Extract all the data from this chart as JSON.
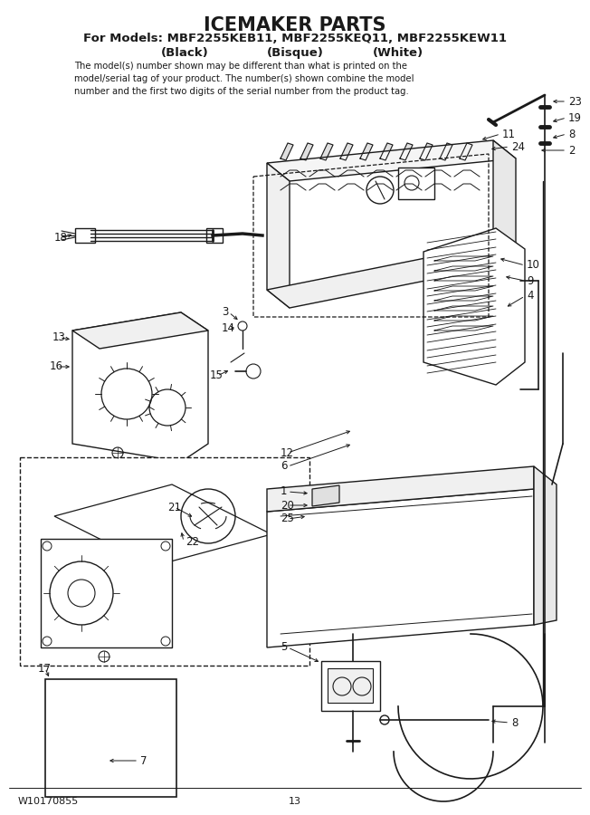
{
  "title": "ICEMAKER PARTS",
  "subtitle": "For Models: MBF2255KEB11, MBF2255KEQ11, MBF2255KEW11",
  "colors_black": "(Black)",
  "colors_bisque": "(Bisque)",
  "colors_white": "(White)",
  "disclaimer": "The model(s) number shown may be different than what is printed on the\nmodel/serial tag of your product. The number(s) shown combine the model\nnumber and the first two digits of the serial number from the product tag.",
  "footer_left": "W10170855",
  "footer_center": "13",
  "bg_color": "#ffffff",
  "line_color": "#1a1a1a",
  "title_fontsize": 15,
  "subtitle_fontsize": 9.5,
  "colors_fontsize": 9.5,
  "disclaimer_fontsize": 7.2,
  "footer_fontsize": 8,
  "label_fontsize": 8.5
}
